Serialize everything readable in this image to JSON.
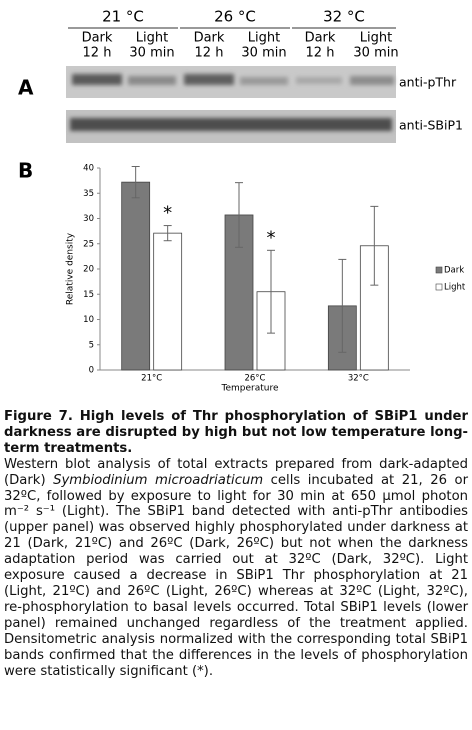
{
  "panel_a": {
    "label": "A",
    "temperatures": [
      "21 °C",
      "26 °C",
      "32 °C"
    ],
    "lanes": [
      {
        "condition": "Dark",
        "time": "12 h"
      },
      {
        "condition": "Light",
        "time": "30 min"
      },
      {
        "condition": "Dark",
        "time": "12 h"
      },
      {
        "condition": "Light",
        "time": "30 min"
      },
      {
        "condition": "Dark",
        "time": "12 h"
      },
      {
        "condition": "Light",
        "time": "30 min"
      }
    ],
    "blots": [
      "anti-pThr",
      "anti-SBiP1"
    ]
  },
  "chart_data": {
    "type": "bar",
    "panel_label": "B",
    "categories": [
      "21°C",
      "26°C",
      "32°C"
    ],
    "series": [
      {
        "name": "Dark",
        "color": "#7a7a7a",
        "values": [
          37.2,
          30.7,
          12.7
        ],
        "errors": [
          3.1,
          6.4,
          9.2
        ]
      },
      {
        "name": "Light",
        "color": "#ffffff",
        "values": [
          27.1,
          15.5,
          24.6
        ],
        "errors": [
          1.5,
          8.2,
          7.8
        ]
      }
    ],
    "annotations": [
      "*",
      "*"
    ],
    "xlabel": "Temperature",
    "ylabel": "Relative density",
    "ylim": [
      0,
      40
    ],
    "yticks": [
      0,
      5,
      10,
      15,
      20,
      25,
      30,
      35,
      40
    ],
    "legend": "right"
  },
  "caption": {
    "title": "Figure 7. High levels of Thr phosphorylation of SBiP1 under darkness are disrupted by high but not low temperature long-term treatments.",
    "body": [
      "Western blot analysis of total extracts prepared from dark-adapted (Dark) ",
      "Symbiodinium microadriaticum",
      " cells incubated at 21, 26 or 32ºC, followed by exposure to light for 30 min at 650 µmol photon m⁻² s⁻¹ (Light). The SBiP1 band detected with anti-pThr antibodies (upper panel) was observed highly phosphorylated under darkness at 21 (Dark, 21ºC) and 26ºC (Dark, 26ºC) but not when the darkness adaptation period was carried out at 32ºC (Dark, 32ºC). Light exposure caused a decrease in SBiP1 Thr phosphorylation at 21 (Light, 21ºC) and 26ºC (Light, 26ºC) whereas at 32ºC (Light, 32ºC), re-phosphorylation to basal levels occurred. Total SBiP1 levels (lower panel) remained unchanged regardless of the treatment applied. Densitometric analysis normalized with the corresponding total SBiP1 bands confirmed that the differences in the levels of phosphorylation were statistically significant (*)."
    ]
  }
}
